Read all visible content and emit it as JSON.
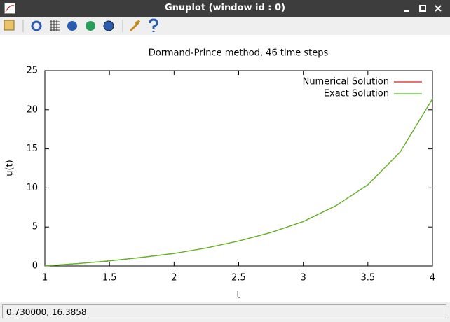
{
  "window_title": "Gnuplot (window id : 0)",
  "status_bar": "0.730000,  16.3858",
  "chart_data": {
    "type": "line",
    "title": "Dormand-Prince method, 46 time steps",
    "x_label": "t",
    "y_label": "u(t)",
    "x": [
      1,
      1.25,
      1.5,
      1.75,
      2,
      2.25,
      2.5,
      2.75,
      3,
      3.25,
      3.5,
      3.75,
      4
    ],
    "series": [
      {
        "name": "Numerical Solution",
        "color": "#e41a1c",
        "values": [
          0,
          0.3,
          0.65,
          1.1,
          1.6,
          2.3,
          3.2,
          4.3,
          5.7,
          7.7,
          10.4,
          14.6,
          21.4
        ]
      },
      {
        "name": "Exact Solution",
        "color": "#4cc11c",
        "values": [
          0,
          0.3,
          0.65,
          1.1,
          1.6,
          2.3,
          3.2,
          4.3,
          5.7,
          7.7,
          10.4,
          14.6,
          21.4
        ]
      }
    ],
    "xlim": [
      1,
      4
    ],
    "xticks": [
      1,
      1.5,
      2,
      2.5,
      3,
      3.5,
      4
    ],
    "ylim": [
      0,
      25
    ],
    "yticks": [
      0,
      5,
      10,
      15,
      20,
      25
    ],
    "legend": "top-right"
  }
}
